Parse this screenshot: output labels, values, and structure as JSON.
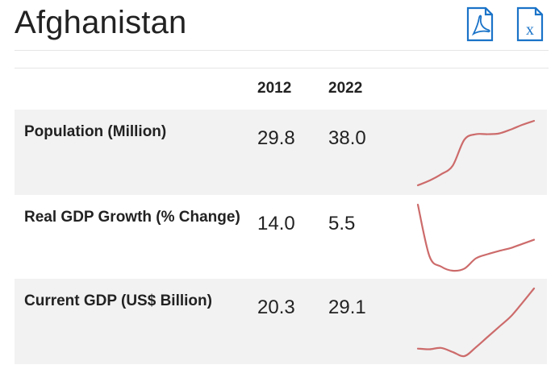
{
  "page": {
    "title": "Afghanistan"
  },
  "downloads": {
    "pdf_icon": "pdf-icon",
    "excel_icon": "excel-icon",
    "icon_color": "#1a73c8"
  },
  "table": {
    "headers": {
      "year_start": "2012",
      "year_end": "2022"
    },
    "rows": [
      {
        "label": "Population (Million)",
        "v2012": "29.8",
        "v2022": "38.0",
        "trend": [
          29.8,
          30.4,
          31.2,
          32.3,
          35.6,
          36.3,
          36.3,
          36.4,
          36.9,
          37.5,
          38.0
        ]
      },
      {
        "label": "Real GDP Growth (% Change)",
        "v2012": "14.0",
        "v2022": "5.5",
        "trend": [
          14.0,
          1.5,
          -1.0,
          -2.0,
          -1.5,
          1.0,
          2.0,
          2.8,
          3.5,
          4.5,
          5.5
        ]
      },
      {
        "label": "Current GDP (US$ Billion)",
        "v2012": "20.3",
        "v2022": "29.1",
        "trend": [
          20.3,
          20.2,
          20.4,
          19.8,
          19.2,
          20.5,
          22.0,
          23.5,
          25.0,
          27.0,
          29.1
        ]
      }
    ],
    "spark_color": "#cd6b6b"
  }
}
